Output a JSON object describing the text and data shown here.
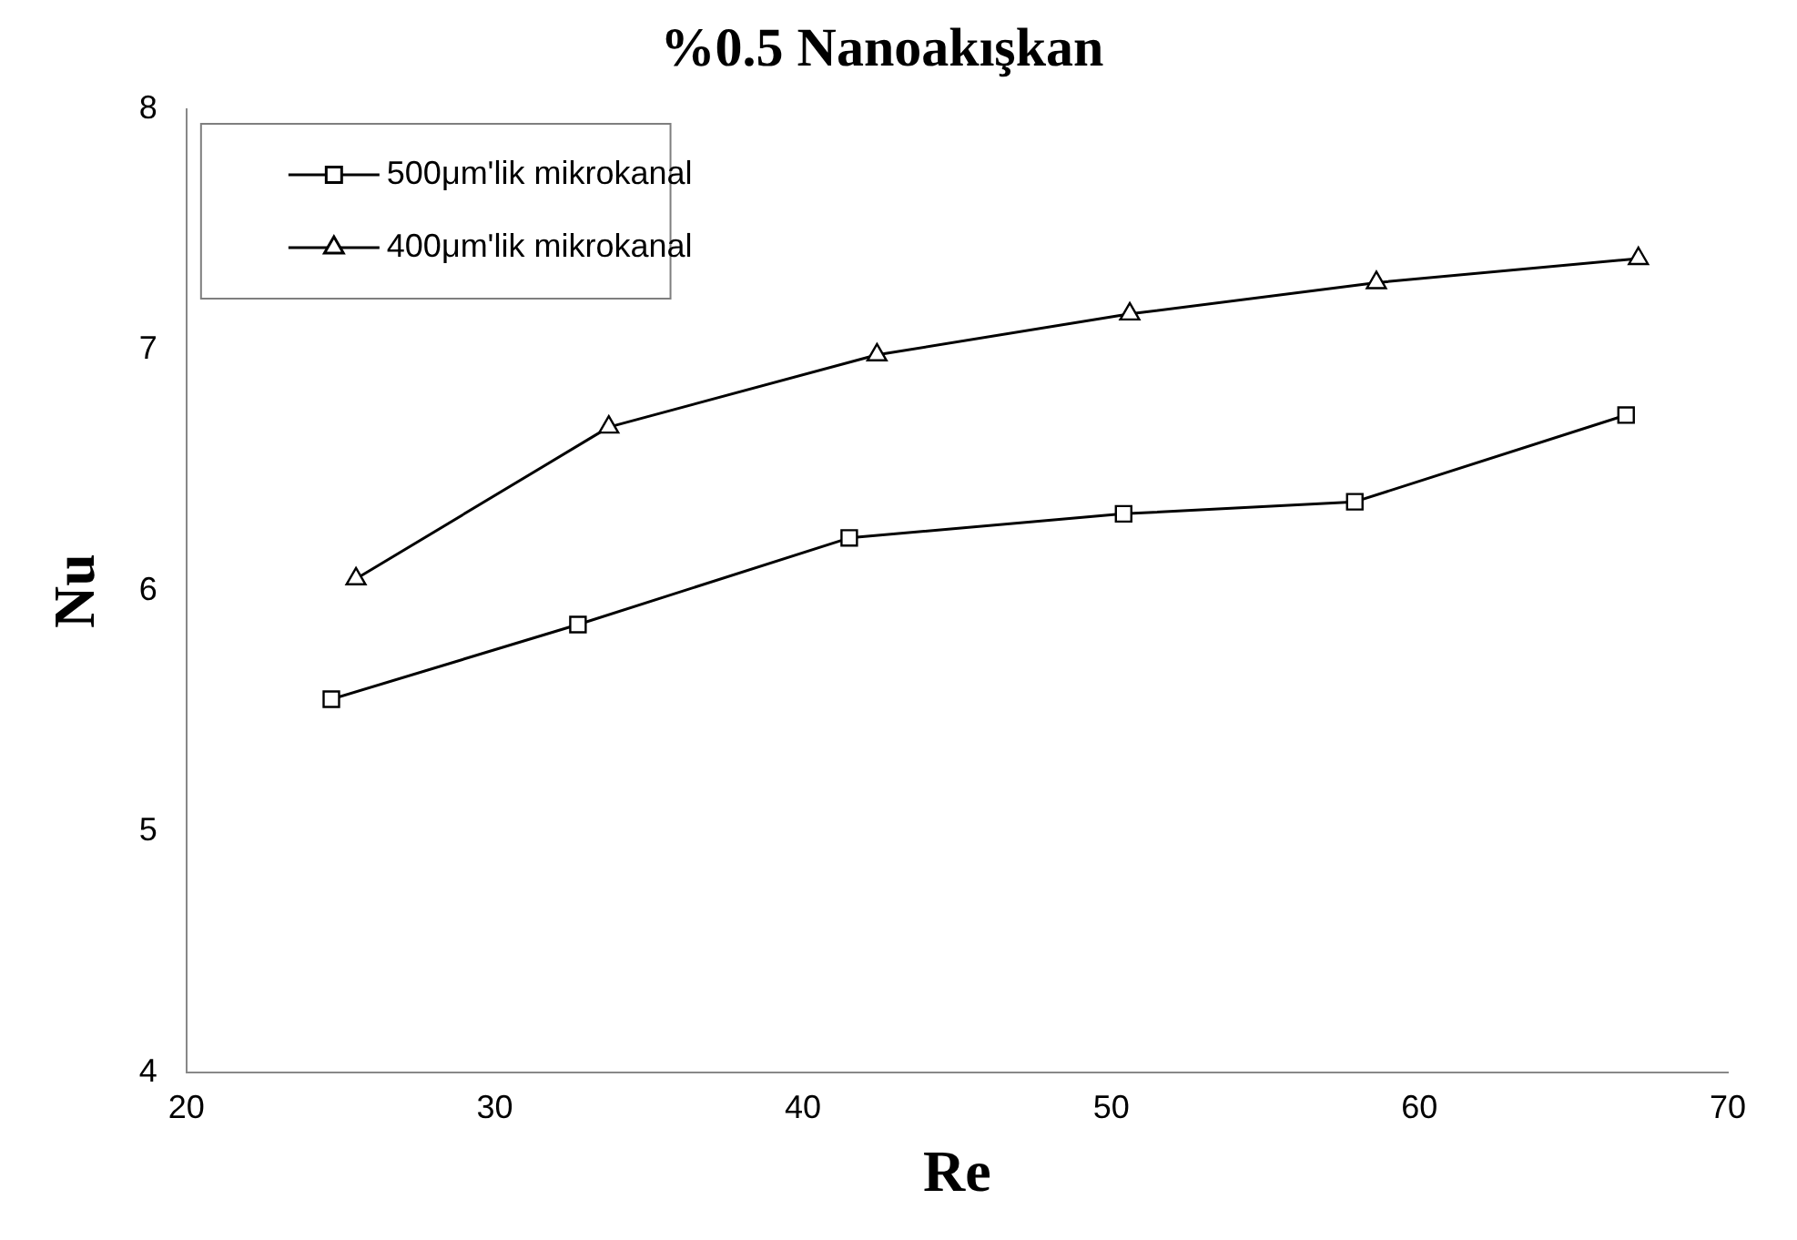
{
  "chart_data": {
    "type": "line",
    "title": "%0.5 Nanoakışkan",
    "xlabel": "Re",
    "ylabel": "Nu",
    "xlim": [
      20,
      70
    ],
    "xticks": [
      20,
      30,
      40,
      50,
      60,
      70
    ],
    "ylim": [
      4,
      8
    ],
    "yticks": [
      4,
      5,
      6,
      7,
      8
    ],
    "grid": false,
    "legend": "top left",
    "line_style": "solid",
    "series": [
      {
        "name": "500μm'lik mikrokanal",
        "color": "#000000",
        "marker": "square",
        "x": [
          24.7,
          32.7,
          41.5,
          50.4,
          57.9,
          66.7
        ],
        "values": [
          5.55,
          5.86,
          6.22,
          6.32,
          6.37,
          6.73
        ]
      },
      {
        "name": "400μm'lik mikrokanal",
        "color": "#000000",
        "marker": "triangle",
        "x": [
          25.5,
          33.7,
          42.4,
          50.6,
          58.6,
          67.1
        ],
        "values": [
          6.05,
          6.68,
          6.98,
          7.15,
          7.28,
          7.38
        ]
      }
    ]
  }
}
